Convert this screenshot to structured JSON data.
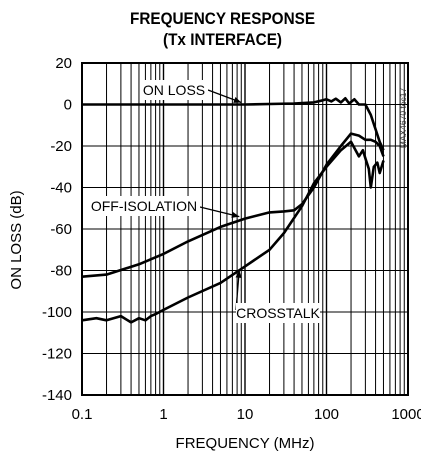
{
  "chart_data": {
    "type": "line",
    "title": "FREQUENCY RESPONSE",
    "subtitle": "(Tx INTERFACE)",
    "xlabel": "FREQUENCY (MHz)",
    "ylabel": "ON LOSS (dB)",
    "x_scale": "log",
    "xlim": [
      0.1,
      1000
    ],
    "ylim": [
      -140,
      20
    ],
    "x_ticks": [
      0.1,
      1,
      10,
      100,
      1000
    ],
    "x_tick_labels": [
      "0.1",
      "1",
      "10",
      "100",
      "1000"
    ],
    "y_ticks": [
      20,
      0,
      -20,
      -40,
      -60,
      -80,
      -100,
      -120,
      -140
    ],
    "y_tick_labels": [
      "20",
      "0",
      "-20",
      "-40",
      "-60",
      "-80",
      "-100",
      "-120",
      "-140"
    ],
    "grid": true,
    "watermark": "MAX4670 toc17",
    "series": [
      {
        "name": "ON LOSS",
        "x": [
          0.1,
          1,
          10,
          40,
          70,
          90,
          100,
          115,
          130,
          150,
          170,
          190,
          220,
          250,
          300,
          350,
          400,
          450,
          500
        ],
        "y": [
          0,
          0,
          0,
          0.5,
          1,
          2,
          2.5,
          1.5,
          2.8,
          1,
          3,
          0.5,
          2.5,
          0,
          0,
          -5,
          -12,
          -18,
          -22
        ]
      },
      {
        "name": "OFF-ISOLATION",
        "x": [
          0.1,
          0.2,
          0.5,
          1,
          2,
          5,
          10,
          20,
          30,
          40,
          50,
          70,
          100,
          150,
          200,
          250,
          300,
          350,
          400,
          450,
          500
        ],
        "y": [
          -83,
          -82,
          -77,
          -72,
          -66,
          -59,
          -55,
          -52,
          -51.5,
          -51,
          -48,
          -40,
          -29,
          -20,
          -14,
          -15,
          -17,
          -17,
          -18,
          -20,
          -25
        ]
      },
      {
        "name": "CROSSTALK",
        "x": [
          0.1,
          0.15,
          0.2,
          0.3,
          0.4,
          0.5,
          0.6,
          0.7,
          0.8,
          1,
          2,
          5,
          10,
          20,
          30,
          50,
          70,
          100,
          150,
          200,
          250,
          280,
          300,
          330,
          350,
          380,
          420,
          450,
          500
        ],
        "y": [
          -104,
          -103,
          -104,
          -102,
          -105,
          -103,
          -104,
          -102,
          -101,
          -99,
          -93,
          -86,
          -78,
          -70,
          -62,
          -49,
          -38,
          -30,
          -22,
          -18,
          -25,
          -22,
          -26,
          -31,
          -40,
          -30,
          -28,
          -33,
          -27
        ]
      }
    ],
    "annotations": [
      {
        "text": "ON LOSS",
        "x": 9,
        "y": 0
      },
      {
        "text": "OFF-ISOLATION",
        "x": 9,
        "y": -55
      },
      {
        "text": "CROSSTALK",
        "x": 9,
        "y": -78
      }
    ]
  }
}
